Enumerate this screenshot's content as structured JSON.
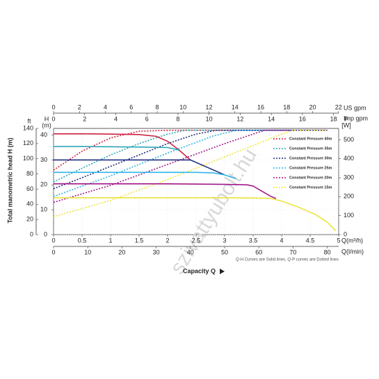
{
  "chart_data": {
    "type": "line",
    "axis_title": "Total manometric head H (m)",
    "x_title": "Capacity Q",
    "note": "Q-H Curves are Solid lines, Q-P curves are Dotted lines",
    "watermark": "szivattyubolt.hu",
    "x_label": "Q(m³/h)",
    "xlim": [
      0,
      5
    ],
    "xticks": [
      0,
      0.5,
      1,
      1.5,
      2,
      2.5,
      3,
      3.5,
      4,
      4.5,
      5
    ],
    "y_label": [
      "H",
      "(m)"
    ],
    "ylim": [
      0,
      42.67
    ],
    "yticks": [
      0,
      10,
      20,
      30,
      40
    ],
    "y2_label": [
      "P",
      "[W]"
    ],
    "y2lim": [
      0,
      560
    ],
    "y2ticks": [
      0,
      100,
      200,
      300,
      400,
      500
    ],
    "ft_axis": {
      "label": "ft",
      "lim": [
        0,
        140
      ],
      "ticks": [
        0,
        20,
        40,
        60,
        80,
        100,
        120,
        140
      ]
    },
    "lpm_axis": {
      "label": "Q(l/min)",
      "lim": [
        0,
        83.33
      ],
      "ticks": [
        0,
        10,
        20,
        30,
        40,
        50,
        60,
        70,
        80
      ]
    },
    "usgpm_axis": {
      "label": "US gpm",
      "lim": [
        0,
        22.01
      ],
      "ticks": [
        0,
        2,
        4,
        6,
        8,
        10,
        12,
        14,
        16,
        18,
        20,
        22
      ]
    },
    "impgpm_axis": {
      "label": "Imp gpm",
      "lim": [
        0,
        18.33
      ],
      "ticks": [
        0,
        2,
        4,
        6,
        8,
        10,
        12,
        14,
        16,
        18
      ]
    },
    "grid": true,
    "series": [
      {
        "name": "Constant Pressure 40m",
        "color": "#d0213f",
        "head": {
          "x": [
            0,
            0.5,
            1,
            1.5,
            1.8,
            2.0,
            2.2,
            2.4
          ],
          "values": [
            40.5,
            40.5,
            40.4,
            40.2,
            39.5,
            37.5,
            34,
            30
          ]
        },
        "power": {
          "axis": "y2",
          "x": [
            0,
            0.5,
            1,
            1.5,
            2,
            4.8
          ],
          "values": [
            340,
            440,
            510,
            545,
            550,
            550
          ]
        }
      },
      {
        "name": "Constant Pressure 35m",
        "color": "#2aa6b8",
        "head": {
          "x": [
            0,
            0.5,
            1,
            1.5,
            1.8,
            2.0,
            2.2
          ],
          "values": [
            35.4,
            35.4,
            35.3,
            35.2,
            35.1,
            35,
            34
          ]
        },
        "power": {
          "axis": "y2",
          "x": [
            0,
            0.5,
            1,
            1.5,
            2,
            2.3,
            4.8
          ],
          "values": [
            278,
            350,
            420,
            480,
            530,
            550,
            550
          ]
        }
      },
      {
        "name": "Constant Pressure 30m",
        "color": "#1c2a80",
        "head": {
          "x": [
            0,
            0.5,
            1,
            1.5,
            2,
            2.4,
            2.7,
            3.0
          ],
          "values": [
            30,
            30,
            30,
            30,
            30,
            30,
            27,
            24
          ]
        },
        "power": {
          "axis": "y2",
          "x": [
            0,
            0.5,
            1,
            1.5,
            2,
            2.5,
            2.85,
            4.8
          ],
          "values": [
            242,
            300,
            360,
            420,
            480,
            530,
            550,
            550
          ]
        }
      },
      {
        "name": "Constant Pressure 25m",
        "color": "#2fb4e8",
        "head": {
          "x": [
            0,
            0.5,
            1,
            1.5,
            2,
            2.5,
            2.8,
            3.0,
            3.2
          ],
          "values": [
            25,
            25,
            25,
            25,
            25,
            25,
            24.8,
            24,
            22.5
          ]
        },
        "power": {
          "axis": "y2",
          "x": [
            0,
            1,
            2,
            2.8,
            3.2,
            4.8
          ],
          "values": [
            201,
            310,
            430,
            520,
            550,
            550
          ]
        }
      },
      {
        "name": "Constant Pressure 20m",
        "color": "#a3168c",
        "head": {
          "x": [
            0,
            0.5,
            1,
            1.5,
            2,
            2.5,
            3,
            3.4,
            3.5,
            3.8,
            3.9
          ],
          "values": [
            20.4,
            20.4,
            20.4,
            20.4,
            20.4,
            20.3,
            20.2,
            20,
            19.5,
            15.5,
            14.5
          ]
        },
        "power": {
          "axis": "y2",
          "x": [
            0,
            1,
            2,
            3,
            3.7,
            4.8
          ],
          "values": [
            170,
            260,
            370,
            480,
            550,
            550
          ]
        }
      },
      {
        "name": "Constant Pressure 15m",
        "color": "#ece33a",
        "head": {
          "x": [
            0,
            0.5,
            1,
            1.5,
            2,
            2.5,
            3,
            3.5,
            3.8,
            4.0,
            4.3,
            4.6,
            4.8,
            4.95
          ],
          "values": [
            14.8,
            14.8,
            14.8,
            14.8,
            14.8,
            14.8,
            14.8,
            14.7,
            14.6,
            13.5,
            11,
            8,
            5,
            1.5
          ]
        },
        "power": {
          "axis": "y2",
          "x": [
            0,
            1,
            2,
            3,
            4,
            4.2,
            4.8
          ],
          "values": [
            95,
            180,
            290,
            410,
            530,
            550,
            550
          ]
        }
      }
    ]
  }
}
